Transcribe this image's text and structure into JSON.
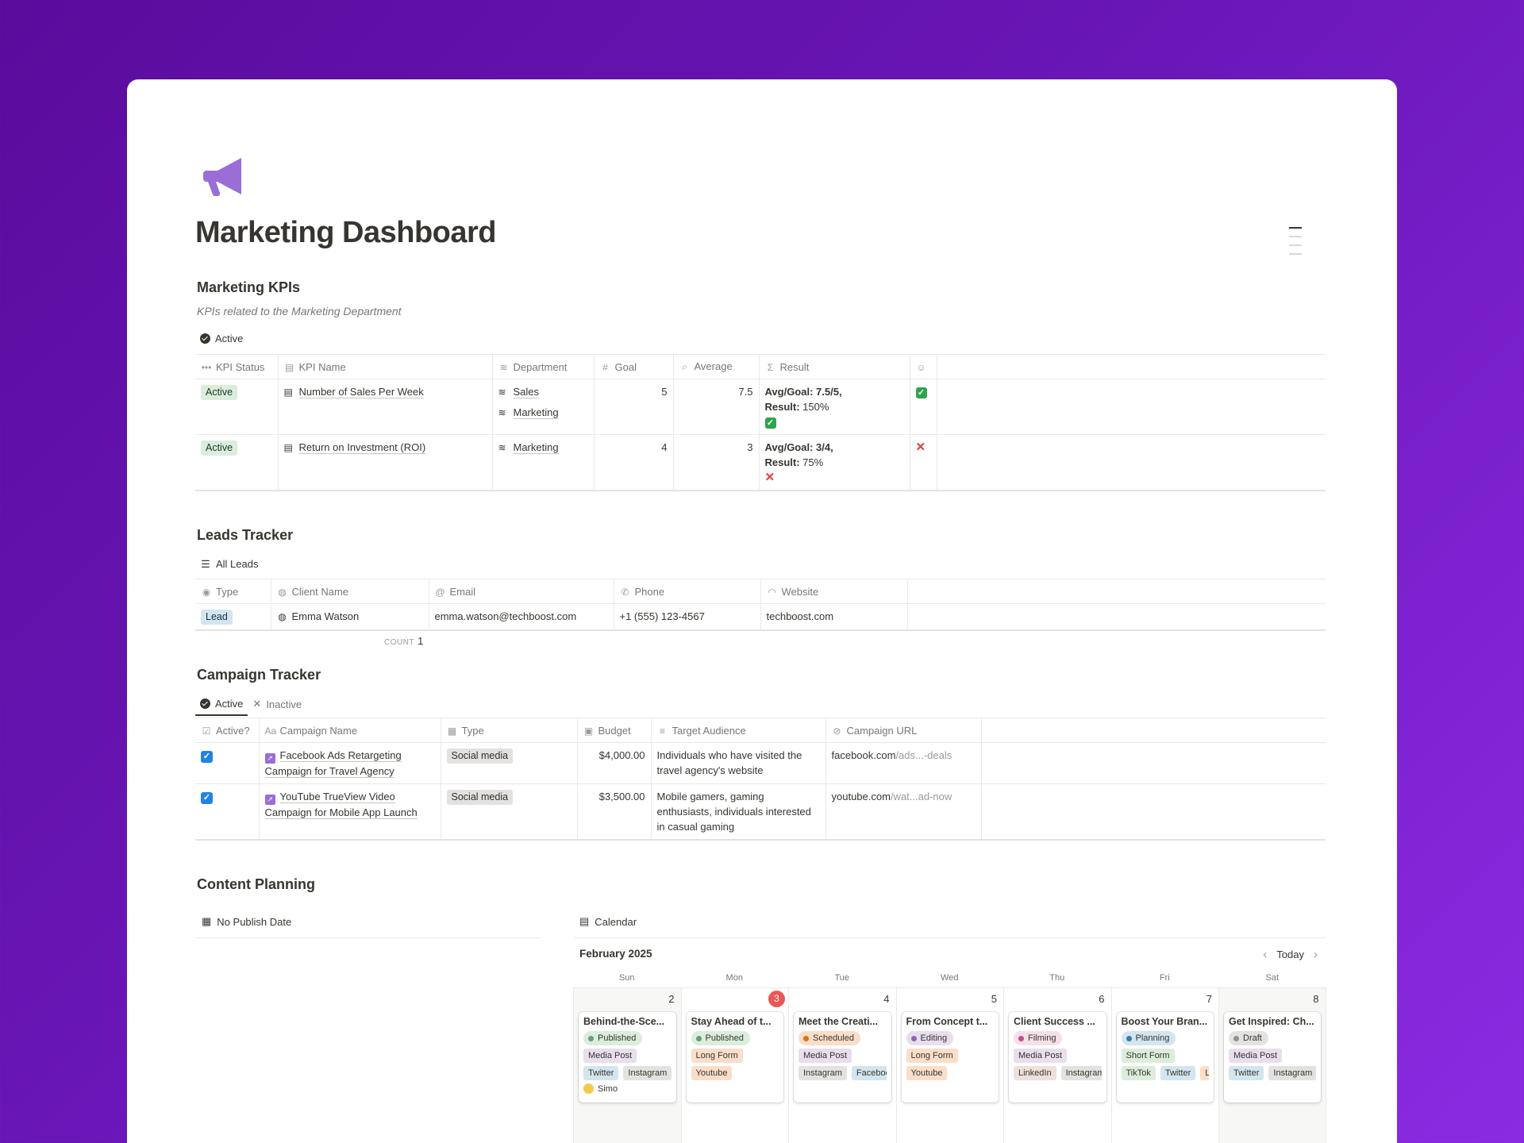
{
  "page": {
    "title": "Marketing Dashboard",
    "icon": "megaphone-icon"
  },
  "kpis": {
    "heading": "Marketing KPIs",
    "description": "KPIs related to the Marketing Department",
    "view": "Active",
    "columns": [
      "KPI Status",
      "KPI Name",
      "Department",
      "Goal",
      "Average",
      "Result"
    ],
    "rows": [
      {
        "status": "Active",
        "name": "Number of Sales Per Week",
        "departments": [
          "Sales",
          "Marketing"
        ],
        "goal": "5",
        "average": "7.5",
        "result_line1": "Avg/Goal: 7.5/5,",
        "result_label": "Result:",
        "result_value": " 150%",
        "met": true
      },
      {
        "status": "Active",
        "name": "Return on Investment (ROI)",
        "departments": [
          "Marketing"
        ],
        "goal": "4",
        "average": "3",
        "result_line1": "Avg/Goal: 3/4,",
        "result_label": "Result:",
        "result_value": " 75%",
        "met": false
      }
    ]
  },
  "leads": {
    "heading": "Leads Tracker",
    "view": "All Leads",
    "columns": [
      "Type",
      "Client Name",
      "Email",
      "Phone",
      "Website"
    ],
    "rows": [
      {
        "type": "Lead",
        "client": "Emma Watson",
        "email": "emma.watson@techboost.com",
        "phone": "+1 (555) 123-4567",
        "website": "techboost.com"
      }
    ],
    "count_label": "COUNT",
    "count_value": "1"
  },
  "campaigns": {
    "heading": "Campaign Tracker",
    "tabs": [
      "Active",
      "Inactive"
    ],
    "columns": [
      "Active?",
      "Campaign Name",
      "Type",
      "Budget",
      "Target Audience",
      "Campaign URL"
    ],
    "rows": [
      {
        "active": true,
        "name": "Facebook Ads Retargeting Campaign for Travel Agency",
        "type": "Social media",
        "budget": "$4,000.00",
        "audience": "Individuals who have visited the travel agency's website",
        "url_main": "facebook.com",
        "url_rest": "/ads...-deals"
      },
      {
        "active": true,
        "name": "YouTube TrueView Video Campaign for Mobile App Launch",
        "type": "Social media",
        "budget": "$3,500.00",
        "audience": "Mobile gamers, gaming enthusiasts, individuals interested in casual gaming",
        "url_main": "youtube.com",
        "url_rest": "/wat...ad-now"
      }
    ]
  },
  "content": {
    "heading": "Content Planning",
    "no_date_view": "No Publish Date",
    "calendar_view": "Calendar",
    "month": "February 2025",
    "today_label": "Today",
    "weekdays": [
      "Sun",
      "Mon",
      "Tue",
      "Wed",
      "Thu",
      "Fri",
      "Sat"
    ],
    "days": [
      {
        "num": "2",
        "title": "Behind-the-Sce...",
        "status": "Published",
        "format": "Media Post",
        "platforms": [
          "Twitter",
          "Instagram"
        ],
        "person": "Simo"
      },
      {
        "num": "3",
        "today": true,
        "title": "Stay Ahead of t...",
        "status": "Published",
        "format": "Long Form",
        "platforms": [
          "Youtube"
        ]
      },
      {
        "num": "4",
        "title": "Meet the Creati...",
        "status": "Scheduled",
        "format": "Media Post",
        "platforms": [
          "Instagram",
          "Faceboo"
        ]
      },
      {
        "num": "5",
        "title": "From Concept t...",
        "status": "Editing",
        "format": "Long Form",
        "platforms": [
          "Youtube"
        ]
      },
      {
        "num": "6",
        "title": "Client Success ...",
        "status": "Filming",
        "format": "Media Post",
        "platforms": [
          "LinkedIn",
          "Instagram"
        ]
      },
      {
        "num": "7",
        "title": "Boost Your Bran...",
        "status": "Planning",
        "format": "Short Form",
        "platforms": [
          "TikTok",
          "Twitter",
          "Li"
        ]
      },
      {
        "num": "8",
        "title": "Get Inspired: Ch...",
        "status": "Draft",
        "format": "Media Post",
        "platforms": [
          "Twitter",
          "Instagram"
        ]
      }
    ]
  },
  "colors": {
    "background_start": "#5a0c9c",
    "background_end": "#8a2be2",
    "icon": "#9a6dd7",
    "today": "#eb5757",
    "checkbox": "#2383e2"
  }
}
